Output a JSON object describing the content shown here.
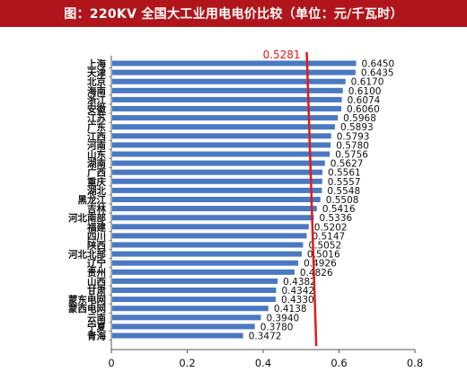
{
  "title": "图：220KV 全国大工业用电电价比较（单位：元/千瓦时）",
  "chart_data": {
    "type": "bar",
    "orientation": "horizontal",
    "categories": [
      "上海",
      "天津",
      "北京",
      "海南",
      "浙江",
      "安徽",
      "江苏",
      "广东",
      "江西",
      "河南",
      "山东",
      "湖南",
      "广西",
      "重庆",
      "湖北",
      "黑龙江",
      "吉林",
      "河北南部",
      "福建",
      "四川",
      "陕西",
      "河北北部",
      "辽宁",
      "贵州",
      "山西",
      "甘肃",
      "蒙东电网",
      "蒙西电网",
      "云南",
      "宁夏",
      "青海"
    ],
    "values": [
      0.645,
      0.6435,
      0.617,
      0.61,
      0.6074,
      0.606,
      0.5968,
      0.5893,
      0.5793,
      0.578,
      0.5756,
      0.5627,
      0.5561,
      0.5557,
      0.5548,
      0.5508,
      0.5416,
      0.5336,
      0.5202,
      0.5147,
      0.5052,
      0.5016,
      0.4926,
      0.4826,
      0.4382,
      0.4342,
      0.433,
      0.4138,
      0.394,
      0.378,
      0.3472
    ],
    "value_labels": [
      "0.6450",
      "0.6435",
      "0.6170",
      "0.6100",
      "0.6074",
      "0.6060",
      "0.5968",
      "0.5893",
      "0.5793",
      "0.5780",
      "0.5756",
      "0.5627",
      "0.5561",
      "0.5557",
      "0.5548",
      "0.5508",
      "0.5416",
      "0.5336",
      "0.5202",
      "0.5147",
      "0.5052",
      "0.5016",
      "0.4926",
      "0.4826",
      "0.4382",
      "0.4342",
      "0.4330",
      "0.4138",
      "0.3940",
      "0.3780",
      "0.3472"
    ],
    "xlim": [
      0,
      0.8
    ],
    "x_ticks": [
      "0",
      "0.2",
      "0.4",
      "0.6",
      "0.8"
    ],
    "reference_line": {
      "label": "0.5281",
      "top_value": 0.515,
      "bottom_value": 0.54
    },
    "colors": {
      "bar": "#4a79c2",
      "reference": "#e31a1c",
      "title_bg": "#b0151b"
    },
    "grid": false,
    "legend": "none"
  }
}
